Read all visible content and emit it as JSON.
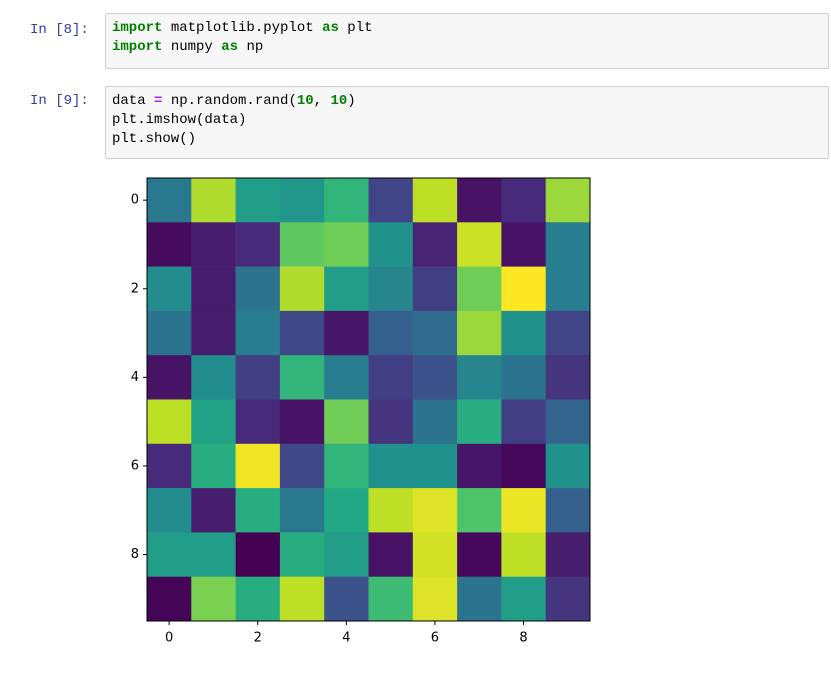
{
  "cells": [
    {
      "prompt": "In  [8]:",
      "lines": [
        [
          {
            "text": "import",
            "color": "#008000"
          },
          {
            "text": " matplotlib.pyplot "
          },
          {
            "text": "as",
            "color": "#008000"
          },
          {
            "text": " plt"
          }
        ],
        [
          {
            "text": "import",
            "color": "#008000"
          },
          {
            "text": " numpy "
          },
          {
            "text": "as",
            "color": "#008000"
          },
          {
            "text": " np"
          }
        ]
      ]
    },
    {
      "prompt": "In  [9]:",
      "lines": [
        [
          {
            "text": "data "
          },
          {
            "text": "=",
            "color": "#aa22ff"
          },
          {
            "text": " np.random.rand("
          },
          {
            "text": "10",
            "color": "#008000"
          },
          {
            "text": ", "
          },
          {
            "text": "10",
            "color": "#008000"
          },
          {
            "text": ")"
          }
        ],
        [
          {
            "text": "plt.imshow(data)"
          }
        ],
        [
          {
            "text": "plt.show()"
          }
        ]
      ]
    }
  ],
  "chart_data": {
    "type": "heatmap",
    "colormap": "viridis",
    "xlim": [
      -0.5,
      9.5
    ],
    "ylim": [
      9.5,
      -0.5
    ],
    "xticks": [
      0,
      2,
      4,
      6,
      8
    ],
    "yticks": [
      0,
      2,
      4,
      6,
      8
    ],
    "z": [
      [
        0.4,
        0.88,
        0.55,
        0.52,
        0.65,
        0.2,
        0.9,
        0.05,
        0.12,
        0.85
      ],
      [
        0.03,
        0.08,
        0.12,
        0.75,
        0.78,
        0.5,
        0.1,
        0.92,
        0.05,
        0.42
      ],
      [
        0.48,
        0.08,
        0.38,
        0.88,
        0.55,
        0.45,
        0.18,
        0.78,
        1.0,
        0.42
      ],
      [
        0.38,
        0.08,
        0.42,
        0.22,
        0.06,
        0.3,
        0.35,
        0.85,
        0.5,
        0.2
      ],
      [
        0.05,
        0.48,
        0.18,
        0.65,
        0.42,
        0.18,
        0.25,
        0.45,
        0.38,
        0.15
      ],
      [
        0.9,
        0.58,
        0.12,
        0.05,
        0.78,
        0.15,
        0.38,
        0.62,
        0.18,
        0.32
      ],
      [
        0.12,
        0.62,
        0.98,
        0.22,
        0.65,
        0.5,
        0.5,
        0.06,
        0.02,
        0.5
      ],
      [
        0.48,
        0.08,
        0.62,
        0.4,
        0.6,
        0.9,
        0.95,
        0.72,
        0.97,
        0.3
      ],
      [
        0.55,
        0.55,
        0.0,
        0.62,
        0.55,
        0.05,
        0.93,
        0.02,
        0.9,
        0.08
      ],
      [
        0.01,
        0.8,
        0.62,
        0.9,
        0.25,
        0.68,
        0.95,
        0.38,
        0.55,
        0.15
      ]
    ]
  }
}
